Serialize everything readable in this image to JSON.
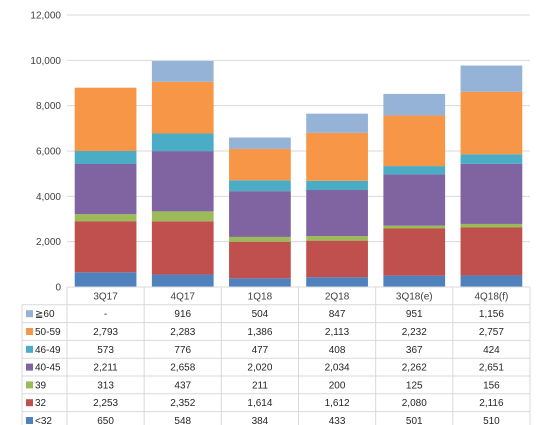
{
  "chart_data": {
    "type": "bar",
    "stacked": true,
    "title": "",
    "xlabel": "",
    "ylabel": "",
    "ylim": [
      0,
      12000
    ],
    "yticks": [
      "0",
      "2,000",
      "4,000",
      "6,000",
      "8,000",
      "10,000",
      "12,000"
    ],
    "grid": true,
    "legend": "data-table-left",
    "categories": [
      "3Q17",
      "4Q17",
      "1Q18",
      "2Q18",
      "3Q18(e)",
      "4Q18(f)"
    ],
    "series": [
      {
        "name": "<32",
        "color": "#4f81bd",
        "values": [
          650,
          548,
          384,
          433,
          501,
          510
        ],
        "labels": [
          "650",
          "548",
          "384",
          "433",
          "501",
          "510"
        ]
      },
      {
        "name": "32",
        "color": "#c0504d",
        "values": [
          2253,
          2352,
          1614,
          1612,
          2080,
          2116
        ],
        "labels": [
          "2,253",
          "2,352",
          "1,614",
          "1,612",
          "2,080",
          "2,116"
        ]
      },
      {
        "name": "39",
        "color": "#9bbb59",
        "values": [
          313,
          437,
          211,
          200,
          125,
          156
        ],
        "labels": [
          "313",
          "437",
          "211",
          "200",
          "125",
          "156"
        ]
      },
      {
        "name": "40-45",
        "color": "#8064a2",
        "values": [
          2211,
          2658,
          2020,
          2034,
          2262,
          2651
        ],
        "labels": [
          "2,211",
          "2,658",
          "2,020",
          "2,034",
          "2,262",
          "2,651"
        ]
      },
      {
        "name": "46-49",
        "color": "#4bacc6",
        "values": [
          573,
          776,
          477,
          408,
          367,
          424
        ],
        "labels": [
          "573",
          "776",
          "477",
          "408",
          "367",
          "424"
        ]
      },
      {
        "name": "50-59",
        "color": "#f79646",
        "values": [
          2793,
          2283,
          1386,
          2113,
          2232,
          2757
        ],
        "labels": [
          "2,793",
          "2,283",
          "1,386",
          "2,113",
          "2,232",
          "2,757"
        ]
      },
      {
        "name": "≧60",
        "color": "#95b3d7",
        "values": [
          0,
          916,
          504,
          847,
          951,
          1156
        ],
        "labels": [
          "-",
          "916",
          "504",
          "847",
          "951",
          "1,156"
        ]
      }
    ]
  }
}
